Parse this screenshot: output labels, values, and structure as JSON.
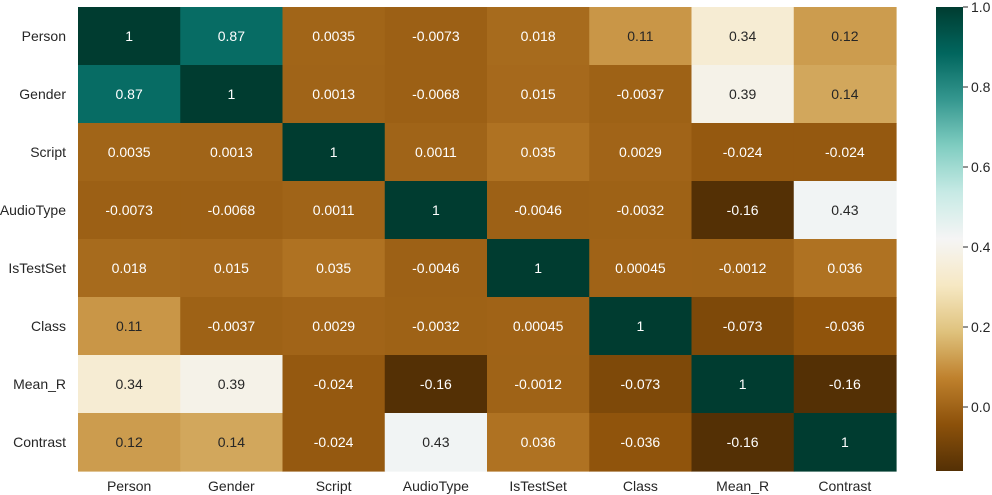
{
  "chart_data": {
    "type": "heatmap",
    "rows": [
      "Person",
      "Gender",
      "Script",
      "AudioType",
      "IsTestSet",
      "Class",
      "Mean_R",
      "Contrast"
    ],
    "cols": [
      "Person",
      "Gender",
      "Script",
      "AudioType",
      "IsTestSet",
      "Class",
      "Mean_R",
      "Contrast"
    ],
    "values": [
      [
        1,
        0.87,
        0.0035,
        -0.0073,
        0.018,
        0.11,
        0.34,
        0.12
      ],
      [
        0.87,
        1,
        0.0013,
        -0.0068,
        0.015,
        -0.0037,
        0.39,
        0.14
      ],
      [
        0.0035,
        0.0013,
        1,
        0.0011,
        0.035,
        0.0029,
        -0.024,
        -0.024
      ],
      [
        -0.0073,
        -0.0068,
        0.0011,
        1,
        -0.0046,
        -0.0032,
        -0.16,
        0.43
      ],
      [
        0.018,
        0.015,
        0.035,
        -0.0046,
        1,
        0.00045,
        -0.0012,
        0.036
      ],
      [
        0.11,
        -0.0037,
        0.0029,
        -0.0032,
        0.00045,
        1,
        -0.073,
        -0.036
      ],
      [
        0.34,
        0.39,
        -0.024,
        -0.16,
        -0.0012,
        -0.073,
        1,
        -0.16
      ],
      [
        0.12,
        0.14,
        -0.024,
        0.43,
        0.036,
        -0.036,
        -0.16,
        1
      ]
    ],
    "labels": [
      [
        "1",
        "0.87",
        "0.0035",
        "-0.0073",
        "0.018",
        "0.11",
        "0.34",
        "0.12"
      ],
      [
        "0.87",
        "1",
        "0.0013",
        "-0.0068",
        "0.015",
        "-0.0037",
        "0.39",
        "0.14"
      ],
      [
        "0.0035",
        "0.0013",
        "1",
        "0.0011",
        "0.035",
        "0.0029",
        "-0.024",
        "-0.024"
      ],
      [
        "-0.0073",
        "-0.0068",
        "0.0011",
        "1",
        "-0.0046",
        "-0.0032",
        "-0.16",
        "0.43"
      ],
      [
        "0.018",
        "0.015",
        "0.035",
        "-0.0046",
        "1",
        "0.00045",
        "-0.0012",
        "0.036"
      ],
      [
        "0.11",
        "-0.0037",
        "0.0029",
        "-0.0032",
        "0.00045",
        "1",
        "-0.073",
        "-0.036"
      ],
      [
        "0.34",
        "0.39",
        "-0.024",
        "-0.16",
        "-0.0012",
        "-0.073",
        "1",
        "-0.16"
      ],
      [
        "0.12",
        "0.14",
        "-0.024",
        "0.43",
        "0.036",
        "-0.036",
        "-0.16",
        "1"
      ]
    ],
    "colormap": "BrBG",
    "vmin": -0.16,
    "vmax": 1.0,
    "colorbar_ticks": [
      0.0,
      0.2,
      0.4,
      0.6,
      0.8,
      1.0
    ],
    "colorbar_tick_labels": [
      "0.0",
      "0.2",
      "0.4",
      "0.6",
      "0.8",
      "1.0"
    ],
    "colormap_stops": [
      "#543005",
      "#8c510a",
      "#bf812d",
      "#dfc27d",
      "#f6e8c3",
      "#f5f5f5",
      "#c7eae5",
      "#80cdc1",
      "#35978f",
      "#01665e",
      "#003c30"
    ],
    "title": "",
    "xlabel": "",
    "ylabel": ""
  }
}
